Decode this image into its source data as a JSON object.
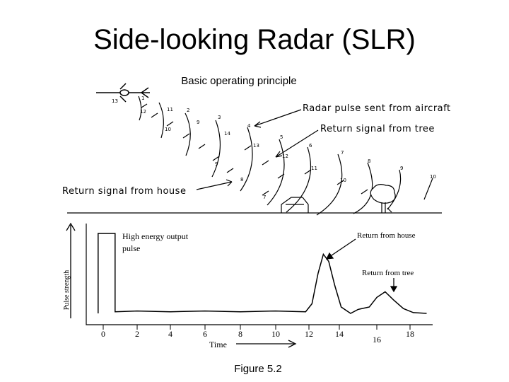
{
  "slide": {
    "title": "Side-looking Radar (SLR)",
    "subtitle": "Basic operating principle",
    "caption": "Figure 5.2"
  },
  "illustration": {
    "label_radar_pulse": "Radar pulse sent from aircraft",
    "label_return_tree": "Return signal from tree",
    "label_return_house": "Return signal from house",
    "wave_numbers": [
      "1",
      "2",
      "3",
      "4",
      "5",
      "6",
      "7",
      "8",
      "9",
      "10"
    ],
    "return_numbers": [
      "13",
      "12",
      "11",
      "10",
      "9",
      "14",
      "13",
      "12",
      "11",
      "10",
      "9",
      "8",
      "7"
    ]
  },
  "chart_data": {
    "type": "line",
    "ylabel": "Pulse strength",
    "xlabel": "Time",
    "x_ticks": [
      "0",
      "2",
      "4",
      "6",
      "8",
      "10",
      "12",
      "14",
      "16",
      "18"
    ],
    "xlim": [
      -0.3,
      19.5
    ],
    "ylim": [
      0,
      1
    ],
    "annotations": {
      "high_energy": "High energy output pulse",
      "house": "Return from house",
      "tree": "Return from tree"
    },
    "series": [
      {
        "values": [
          [
            -0.3,
            0.0
          ],
          [
            -0.3,
            1.0
          ],
          [
            0.7,
            1.0
          ],
          [
            0.7,
            0.02
          ],
          [
            2,
            0.03
          ],
          [
            4,
            0.02
          ],
          [
            6,
            0.03
          ],
          [
            8,
            0.02
          ],
          [
            10,
            0.03
          ],
          [
            11.8,
            0.02
          ],
          [
            12.2,
            0.12
          ],
          [
            12.6,
            0.5
          ],
          [
            12.95,
            0.74
          ],
          [
            13.3,
            0.65
          ],
          [
            13.7,
            0.35
          ],
          [
            14.1,
            0.08
          ],
          [
            14.6,
            0.0
          ],
          [
            15.0,
            0.05
          ],
          [
            15.6,
            0.08
          ],
          [
            16.0,
            0.2
          ],
          [
            16.5,
            0.27
          ],
          [
            17.0,
            0.17
          ],
          [
            17.6,
            0.06
          ],
          [
            18.2,
            0.01
          ],
          [
            19.0,
            0.0
          ]
        ]
      }
    ]
  }
}
